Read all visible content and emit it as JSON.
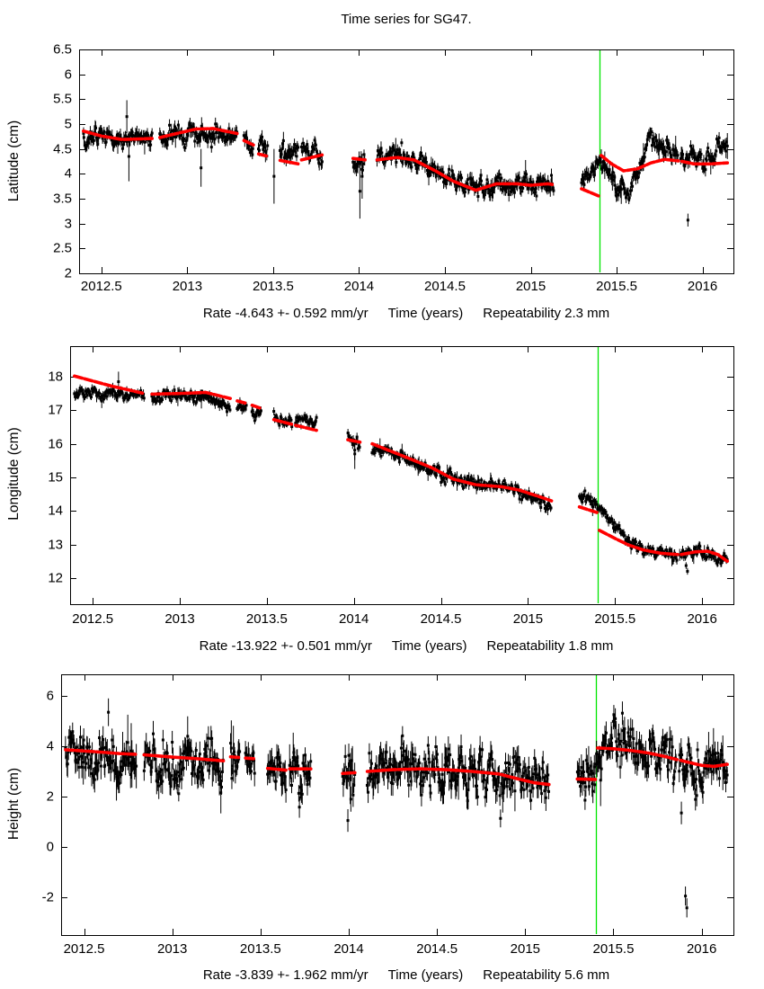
{
  "title": "Time series for SG47.",
  "colors": {
    "points": "#000000",
    "model": "#ff0000",
    "event_line": "#00e500",
    "frame": "#000000"
  },
  "chart_data": [
    {
      "type": "scatter",
      "id": "latitude",
      "ylabel": "Latitude (cm)",
      "xlabel": "Time (years)",
      "rate_label": "Rate -4.643 +- 0.592 mm/yr",
      "repeatability_label": "Repeatability 2.3 mm",
      "x_range": [
        2012.37,
        2016.18
      ],
      "y_range": [
        2.0,
        6.5
      ],
      "x_tick_labels": [
        "2012.5",
        "2013",
        "2013.5",
        "2014",
        "2014.5",
        "2015",
        "2015.5",
        "2016"
      ],
      "y_tick_labels": [
        "2",
        "2.5",
        "3",
        "3.5",
        "4",
        "4.5",
        "5",
        "5.5",
        "6",
        "6.5"
      ],
      "event_x": 2015.4,
      "noise_sigma": 0.1,
      "errorbar_half": 0.11,
      "seed": 101,
      "scatter_center": [
        [
          2012.395,
          4.8
        ],
        [
          2012.55,
          4.74
        ],
        [
          2012.7,
          4.73
        ],
        [
          2012.84,
          4.74
        ],
        [
          2013.0,
          4.79
        ],
        [
          2013.15,
          4.74
        ],
        [
          2013.29,
          4.73
        ],
        [
          2013.33,
          4.68
        ],
        [
          2013.47,
          4.48
        ],
        [
          2013.54,
          4.45
        ],
        [
          2013.645,
          4.38
        ],
        [
          2013.665,
          4.4
        ],
        [
          2013.785,
          4.36
        ],
        [
          2013.965,
          4.28
        ],
        [
          2014.035,
          4.3
        ],
        [
          2014.105,
          4.3
        ],
        [
          2014.25,
          4.37
        ],
        [
          2014.4,
          4.12
        ],
        [
          2014.55,
          3.88
        ],
        [
          2014.7,
          3.74
        ],
        [
          2014.85,
          3.77
        ],
        [
          2015.0,
          3.81
        ],
        [
          2015.135,
          3.86
        ],
        [
          2015.295,
          3.78
        ],
        [
          2015.35,
          4.02
        ],
        [
          2015.398,
          4.15
        ],
        [
          2015.44,
          4.02
        ],
        [
          2015.51,
          3.74
        ],
        [
          2015.57,
          3.62
        ],
        [
          2015.63,
          4.05
        ],
        [
          2015.69,
          4.68
        ],
        [
          2015.74,
          4.62
        ],
        [
          2015.81,
          4.5
        ],
        [
          2015.9,
          4.36
        ],
        [
          2016.0,
          4.36
        ],
        [
          2016.08,
          4.42
        ],
        [
          2016.145,
          4.5
        ]
      ],
      "model": [
        [
          [
            2012.395,
            4.86
          ],
          [
            2012.5,
            4.76
          ],
          [
            2012.62,
            4.69
          ],
          [
            2012.795,
            4.71
          ]
        ],
        [
          [
            2012.84,
            4.73
          ],
          [
            2012.95,
            4.82
          ],
          [
            2013.05,
            4.9
          ],
          [
            2013.15,
            4.91
          ],
          [
            2013.29,
            4.81
          ]
        ],
        [
          [
            2013.33,
            4.67
          ],
          [
            2013.385,
            4.58
          ]
        ],
        [
          [
            2013.415,
            4.4
          ],
          [
            2013.47,
            4.35
          ]
        ],
        [
          [
            2013.54,
            4.27
          ],
          [
            2013.645,
            4.2
          ]
        ],
        [
          [
            2013.665,
            4.28
          ],
          [
            2013.785,
            4.38
          ]
        ],
        [
          [
            2013.965,
            4.31
          ],
          [
            2014.035,
            4.28
          ]
        ],
        [
          [
            2014.105,
            4.28
          ],
          [
            2014.22,
            4.33
          ],
          [
            2014.32,
            4.28
          ],
          [
            2014.45,
            4.05
          ],
          [
            2014.55,
            3.85
          ],
          [
            2014.68,
            3.67
          ],
          [
            2014.8,
            3.8
          ],
          [
            2014.92,
            3.8
          ],
          [
            2015.0,
            3.77
          ],
          [
            2015.1,
            3.8
          ],
          [
            2015.135,
            3.78
          ]
        ],
        [
          [
            2015.295,
            3.7
          ],
          [
            2015.398,
            3.55
          ]
        ],
        [
          [
            2015.41,
            4.37
          ],
          [
            2015.47,
            4.2
          ],
          [
            2015.54,
            4.06
          ],
          [
            2015.62,
            4.1
          ],
          [
            2015.7,
            4.22
          ],
          [
            2015.78,
            4.29
          ],
          [
            2015.86,
            4.26
          ]
        ],
        [
          [
            2015.88,
            4.25
          ],
          [
            2015.95,
            4.2
          ],
          [
            2016.05,
            4.2
          ],
          [
            2016.145,
            4.22
          ]
        ]
      ],
      "outliers": [
        [
          2012.648,
          5.15,
          0.33
        ],
        [
          2012.66,
          4.35,
          0.5
        ],
        [
          2013.08,
          4.12,
          0.38
        ],
        [
          2013.505,
          3.95,
          0.55
        ],
        [
          2014.005,
          3.65,
          0.55
        ],
        [
          2014.018,
          3.95,
          0.45
        ],
        [
          2015.915,
          3.07,
          0.13
        ]
      ]
    },
    {
      "type": "scatter",
      "id": "longitude",
      "ylabel": "Longitude (cm)",
      "xlabel": "Time (years)",
      "rate_label": "Rate -13.922 +- 0.501 mm/yr",
      "repeatability_label": "Repeatability 1.8 mm",
      "x_range": [
        2012.37,
        2016.18
      ],
      "y_range": [
        11.22,
        18.91
      ],
      "x_tick_labels": [
        "2012.5",
        "2013",
        "2013.5",
        "2014",
        "2014.5",
        "2015",
        "2015.5",
        "2016"
      ],
      "y_tick_labels": [
        "12",
        "13",
        "14",
        "15",
        "16",
        "17",
        "18"
      ],
      "event_x": 2015.4,
      "noise_sigma": 0.095,
      "errorbar_half": 0.11,
      "seed": 202,
      "scatter_center": [
        [
          2012.395,
          17.52
        ],
        [
          2012.6,
          17.46
        ],
        [
          2012.795,
          17.43
        ],
        [
          2012.84,
          17.43
        ],
        [
          2012.95,
          17.45
        ],
        [
          2013.1,
          17.43
        ],
        [
          2013.2,
          17.32
        ],
        [
          2013.29,
          17.22
        ],
        [
          2013.33,
          17.18
        ],
        [
          2013.47,
          16.92
        ],
        [
          2013.54,
          16.82
        ],
        [
          2013.645,
          16.72
        ],
        [
          2013.665,
          16.73
        ],
        [
          2013.785,
          16.62
        ],
        [
          2013.965,
          16.12
        ],
        [
          2014.035,
          16.02
        ],
        [
          2014.105,
          15.98
        ],
        [
          2014.3,
          15.55
        ],
        [
          2014.45,
          15.22
        ],
        [
          2014.57,
          14.92
        ],
        [
          2014.7,
          14.78
        ],
        [
          2014.85,
          14.74
        ],
        [
          2015.0,
          14.42
        ],
        [
          2015.135,
          14.12
        ],
        [
          2015.295,
          14.5
        ],
        [
          2015.398,
          14.18
        ],
        [
          2015.44,
          13.95
        ],
        [
          2015.51,
          13.52
        ],
        [
          2015.58,
          13.1
        ],
        [
          2015.66,
          12.85
        ],
        [
          2015.76,
          12.72
        ],
        [
          2015.86,
          12.66
        ],
        [
          2015.88,
          12.68
        ],
        [
          2015.96,
          12.82
        ],
        [
          2016.03,
          12.76
        ],
        [
          2016.09,
          12.66
        ],
        [
          2016.145,
          12.56
        ]
      ],
      "model": [
        [
          [
            2012.395,
            18.02
          ],
          [
            2012.6,
            17.73
          ],
          [
            2012.795,
            17.5
          ]
        ],
        [
          [
            2012.84,
            17.48
          ],
          [
            2013.0,
            17.5
          ],
          [
            2013.15,
            17.53
          ],
          [
            2013.29,
            17.35
          ]
        ],
        [
          [
            2013.33,
            17.28
          ],
          [
            2013.385,
            17.2
          ]
        ],
        [
          [
            2013.415,
            17.15
          ],
          [
            2013.47,
            17.05
          ]
        ],
        [
          [
            2013.54,
            16.72
          ],
          [
            2013.645,
            16.58
          ]
        ],
        [
          [
            2013.665,
            16.55
          ],
          [
            2013.785,
            16.4
          ]
        ],
        [
          [
            2013.965,
            16.12
          ],
          [
            2014.035,
            16.05
          ]
        ],
        [
          [
            2014.105,
            16.0
          ],
          [
            2014.3,
            15.6
          ],
          [
            2014.45,
            15.28
          ],
          [
            2014.57,
            14.95
          ],
          [
            2014.7,
            14.78
          ],
          [
            2014.85,
            14.72
          ],
          [
            2014.95,
            14.62
          ],
          [
            2015.05,
            14.45
          ],
          [
            2015.135,
            14.3
          ]
        ],
        [
          [
            2015.295,
            14.12
          ],
          [
            2015.398,
            13.95
          ]
        ],
        [
          [
            2015.41,
            13.42
          ],
          [
            2015.5,
            13.18
          ],
          [
            2015.58,
            12.98
          ],
          [
            2015.66,
            12.84
          ],
          [
            2015.76,
            12.74
          ],
          [
            2015.86,
            12.7
          ]
        ],
        [
          [
            2015.88,
            12.7
          ],
          [
            2015.96,
            12.78
          ],
          [
            2016.03,
            12.8
          ],
          [
            2016.09,
            12.7
          ],
          [
            2016.145,
            12.5
          ]
        ]
      ],
      "outliers": [
        [
          2014.005,
          15.7,
          0.45
        ],
        [
          2012.648,
          17.85,
          0.3
        ],
        [
          2015.908,
          12.37,
          0.1
        ],
        [
          2015.916,
          12.2,
          0.1
        ]
      ]
    },
    {
      "type": "scatter",
      "id": "height",
      "ylabel": "Height (cm)",
      "xlabel": "Time (years)",
      "rate_label": "Rate -3.839 +- 1.962 mm/yr",
      "repeatability_label": "Repeatability 5.6 mm",
      "x_range": [
        2012.37,
        2016.18
      ],
      "y_range": [
        -3.5,
        6.857
      ],
      "x_tick_labels": [
        "2012.5",
        "2013",
        "2013.5",
        "2014",
        "2014.5",
        "2015",
        "2015.5",
        "2016"
      ],
      "y_tick_labels": [
        "-2",
        "0",
        "2",
        "4",
        "6"
      ],
      "event_x": 2015.4,
      "noise_sigma": 0.46,
      "errorbar_half": 0.42,
      "seed": 303,
      "scatter_center": [
        [
          2012.395,
          3.55
        ],
        [
          2012.55,
          3.5
        ],
        [
          2012.795,
          3.4
        ],
        [
          2012.84,
          3.35
        ],
        [
          2013.0,
          3.3
        ],
        [
          2013.29,
          3.25
        ],
        [
          2013.33,
          3.42
        ],
        [
          2013.47,
          3.32
        ],
        [
          2013.54,
          3.05
        ],
        [
          2013.785,
          3.0
        ],
        [
          2013.965,
          2.8
        ],
        [
          2014.035,
          2.85
        ],
        [
          2014.105,
          2.95
        ],
        [
          2014.3,
          3.1
        ],
        [
          2014.45,
          3.15
        ],
        [
          2014.6,
          3.05
        ],
        [
          2014.8,
          2.95
        ],
        [
          2014.95,
          2.7
        ],
        [
          2015.05,
          2.55
        ],
        [
          2015.135,
          2.48
        ],
        [
          2015.295,
          2.72
        ],
        [
          2015.398,
          2.8
        ],
        [
          2015.43,
          3.95
        ],
        [
          2015.55,
          4.0
        ],
        [
          2015.7,
          3.75
        ],
        [
          2015.8,
          3.45
        ],
        [
          2015.9,
          3.05
        ],
        [
          2015.97,
          3.1
        ],
        [
          2016.05,
          3.2
        ],
        [
          2016.145,
          3.25
        ]
      ],
      "model": [
        [
          [
            2012.395,
            3.86
          ],
          [
            2012.55,
            3.79
          ],
          [
            2012.7,
            3.71
          ],
          [
            2012.795,
            3.68
          ]
        ],
        [
          [
            2012.84,
            3.66
          ],
          [
            2013.0,
            3.57
          ],
          [
            2013.15,
            3.5
          ],
          [
            2013.29,
            3.42
          ]
        ],
        [
          [
            2013.33,
            3.58
          ],
          [
            2013.385,
            3.55
          ]
        ],
        [
          [
            2013.415,
            3.53
          ],
          [
            2013.47,
            3.5
          ]
        ],
        [
          [
            2013.54,
            3.12
          ],
          [
            2013.645,
            3.05
          ]
        ],
        [
          [
            2013.665,
            3.1
          ],
          [
            2013.785,
            3.1
          ]
        ],
        [
          [
            2013.965,
            2.92
          ],
          [
            2014.035,
            2.95
          ]
        ],
        [
          [
            2014.105,
            3.0
          ],
          [
            2014.25,
            3.07
          ],
          [
            2014.4,
            3.1
          ],
          [
            2014.55,
            3.07
          ],
          [
            2014.7,
            3.0
          ],
          [
            2014.85,
            2.9
          ],
          [
            2014.95,
            2.72
          ],
          [
            2015.05,
            2.55
          ],
          [
            2015.135,
            2.48
          ]
        ],
        [
          [
            2015.295,
            2.7
          ],
          [
            2015.398,
            2.68
          ]
        ],
        [
          [
            2015.41,
            3.93
          ],
          [
            2015.5,
            3.9
          ],
          [
            2015.6,
            3.83
          ],
          [
            2015.7,
            3.73
          ],
          [
            2015.8,
            3.58
          ],
          [
            2015.86,
            3.47
          ]
        ],
        [
          [
            2015.88,
            3.44
          ],
          [
            2015.95,
            3.32
          ],
          [
            2016.0,
            3.24
          ],
          [
            2016.07,
            3.2
          ],
          [
            2016.145,
            3.28
          ]
        ]
      ],
      "outliers": [
        [
          2012.638,
          5.35,
          0.55
        ],
        [
          2013.995,
          1.05,
          0.45
        ],
        [
          2014.012,
          1.9,
          0.5
        ],
        [
          2015.885,
          1.35,
          0.45
        ],
        [
          2015.908,
          -1.95,
          0.38
        ],
        [
          2015.916,
          -2.42,
          0.38
        ]
      ]
    }
  ],
  "shared": {
    "data_segments": [
      [
        2012.395,
        2012.795
      ],
      [
        2012.84,
        2013.29
      ],
      [
        2013.33,
        2013.385
      ],
      [
        2013.415,
        2013.47
      ],
      [
        2013.54,
        2013.645
      ],
      [
        2013.665,
        2013.785
      ],
      [
        2013.965,
        2014.035
      ],
      [
        2014.105,
        2015.135
      ],
      [
        2015.295,
        2015.858
      ],
      [
        2015.872,
        2016.145
      ]
    ]
  }
}
